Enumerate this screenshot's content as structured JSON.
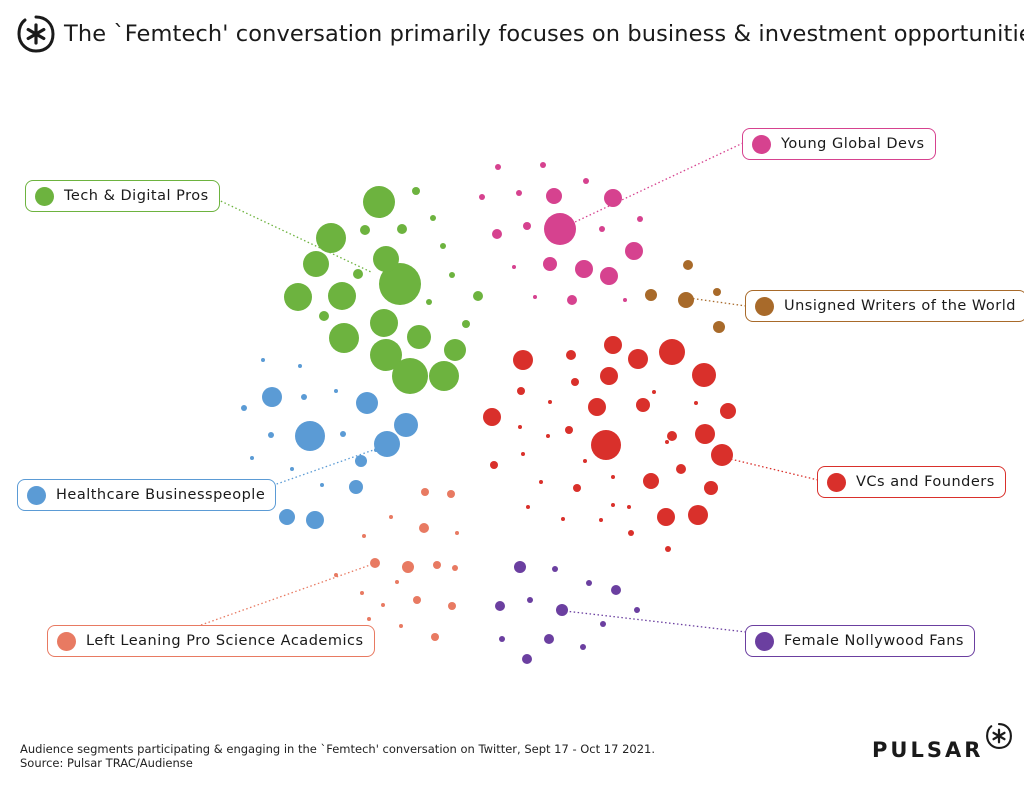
{
  "title": "The `Femtech' conversation primarily focuses on business & investment opportunities",
  "brand": {
    "name": "PULSAR",
    "logo": "pulsar-star-logo"
  },
  "footer": {
    "line1": "Audience segments participating & engaging in the `Femtech' conversation on Twitter, Sept 17  - Oct 17 2021.",
    "line2": "Source: Pulsar TRAC/Audiense"
  },
  "segments": [
    {
      "key": "young",
      "label": "Young Global Devs",
      "color": "#d6428f"
    },
    {
      "key": "tech",
      "label": "Tech & Digital Pros",
      "color": "#6db33f"
    },
    {
      "key": "unsigned",
      "label": "Unsigned Writers of the World",
      "color": "#a86a2a"
    },
    {
      "key": "health",
      "label": "Healthcare Businesspeople",
      "color": "#5b9bd5"
    },
    {
      "key": "vcs",
      "label": "VCs and Founders",
      "color": "#d9302b"
    },
    {
      "key": "left",
      "label": "Left Leaning Pro Science Academics",
      "color": "#e87a62"
    },
    {
      "key": "female",
      "label": "Female Nollywood Fans",
      "color": "#6b3fa0"
    }
  ]
}
